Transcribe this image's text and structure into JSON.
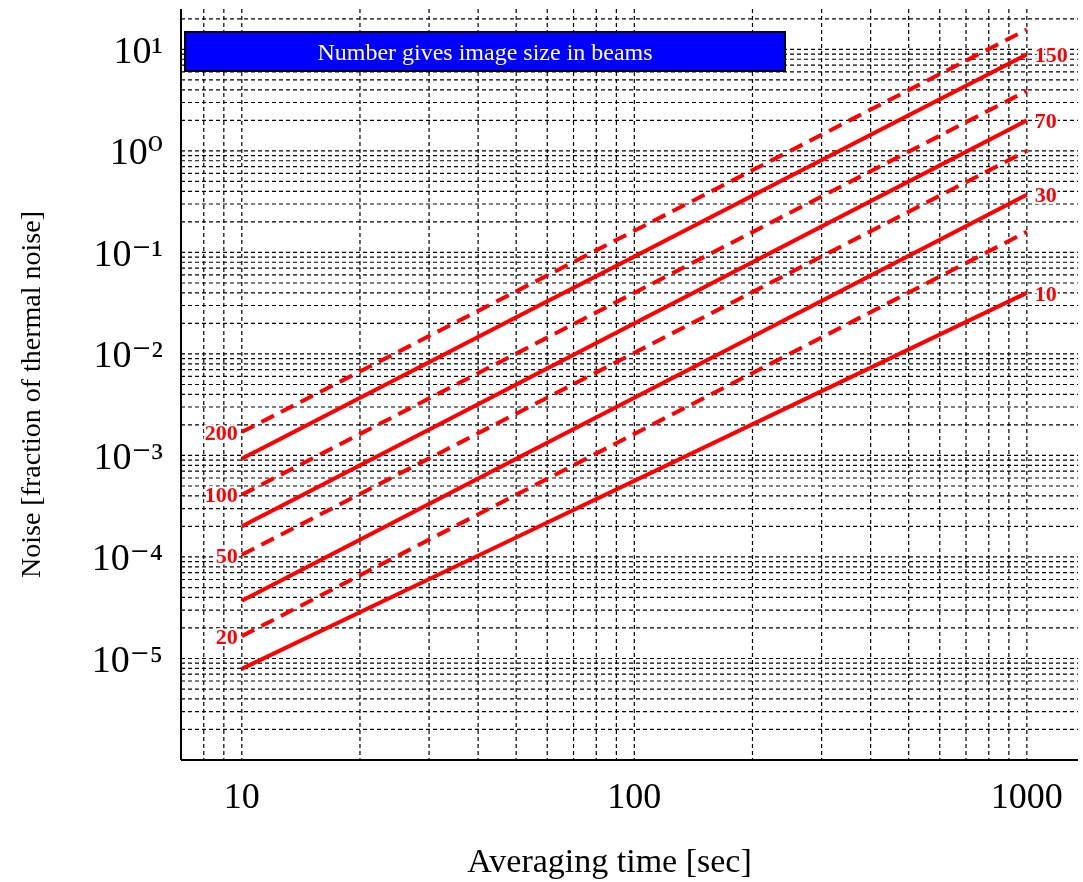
{
  "chart_data": {
    "type": "line",
    "xlabel": "Averaging time [sec]",
    "ylabel": "Noise [fraction of thermal noise]",
    "annotations": [
      "Number gives image size in beams"
    ],
    "log": "xy",
    "grid": true,
    "marker": "none",
    "xlim": [
      7,
      1350
    ],
    "xticks": [
      10,
      100,
      1000
    ],
    "ylim": [
      1e-06,
      25
    ],
    "yticks": [
      {
        "value": 1e-05,
        "label": "10⁻⁵"
      },
      {
        "value": 0.0001,
        "label": "10⁻⁴"
      },
      {
        "value": 0.001,
        "label": "10⁻³"
      },
      {
        "value": 0.01,
        "label": "10⁻²"
      },
      {
        "value": 0.1,
        "label": "10⁻¹"
      },
      {
        "value": 1,
        "label": "10⁰"
      },
      {
        "value": 10,
        "label": "10¹"
      }
    ],
    "x": [
      10,
      1000
    ],
    "series": [
      {
        "name": "200",
        "color": "#ff0000",
        "line_style": "dashed",
        "values": [
          0.0017,
          15.7
        ]
      },
      {
        "name": "150",
        "color": "#ff0000",
        "line_style": "solid",
        "values": [
          0.00093,
          8.9
        ]
      },
      {
        "name": "100",
        "color": "#ff0000",
        "line_style": "dashed",
        "values": [
          0.00041,
          3.9
        ]
      },
      {
        "name": "70",
        "color": "#ff0000",
        "line_style": "solid",
        "values": [
          0.0002,
          2.0
        ]
      },
      {
        "name": "50",
        "color": "#ff0000",
        "line_style": "dashed",
        "values": [
          0.000105,
          1.0
        ]
      },
      {
        "name": "30",
        "color": "#ff0000",
        "line_style": "solid",
        "values": [
          3.7e-05,
          0.37
        ]
      },
      {
        "name": "20",
        "color": "#ff0000",
        "line_style": "dashed",
        "values": [
          1.66e-05,
          0.16
        ]
      },
      {
        "name": "10",
        "color": "#ff0000",
        "line_style": "solid",
        "values": [
          7.9e-06,
          0.04
        ]
      }
    ]
  }
}
